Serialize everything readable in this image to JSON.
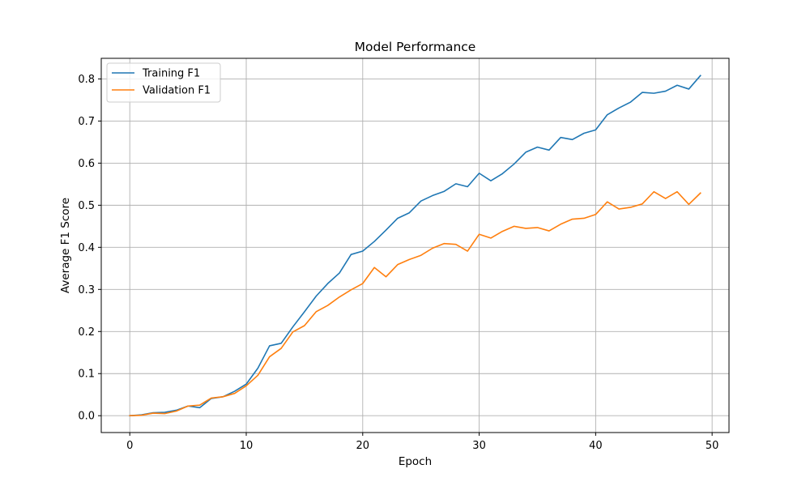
{
  "chart_data": {
    "type": "line",
    "title": "Model Performance",
    "xlabel": "Epoch",
    "ylabel": "Average F1 Score",
    "xlim": [
      -2.45,
      51.45
    ],
    "ylim": [
      -0.04,
      0.849
    ],
    "xticks": [
      0,
      10,
      20,
      30,
      40,
      50
    ],
    "yticks": [
      0.0,
      0.1,
      0.2,
      0.3,
      0.4,
      0.5,
      0.6,
      0.7,
      0.8
    ],
    "xtick_labels": [
      "0",
      "10",
      "20",
      "30",
      "40",
      "50"
    ],
    "ytick_labels": [
      "0.0",
      "0.1",
      "0.2",
      "0.3",
      "0.4",
      "0.5",
      "0.6",
      "0.7",
      "0.8"
    ],
    "grid": true,
    "legend_position": "upper left",
    "x": [
      0,
      1,
      2,
      3,
      4,
      5,
      6,
      7,
      8,
      9,
      10,
      11,
      12,
      13,
      14,
      15,
      16,
      17,
      18,
      19,
      20,
      21,
      22,
      23,
      24,
      25,
      26,
      27,
      28,
      29,
      30,
      31,
      32,
      33,
      34,
      35,
      36,
      37,
      38,
      39,
      40,
      41,
      42,
      43,
      44,
      45,
      46,
      47,
      48,
      49
    ],
    "series": [
      {
        "name": "Training F1",
        "color": "#1f77b4",
        "values": [
          0.0,
          0.002,
          0.007,
          0.008,
          0.013,
          0.023,
          0.019,
          0.041,
          0.045,
          0.058,
          0.075,
          0.113,
          0.166,
          0.172,
          0.211,
          0.247,
          0.284,
          0.314,
          0.339,
          0.383,
          0.391,
          0.414,
          0.441,
          0.469,
          0.482,
          0.51,
          0.523,
          0.533,
          0.551,
          0.544,
          0.576,
          0.558,
          0.575,
          0.598,
          0.626,
          0.638,
          0.631,
          0.661,
          0.656,
          0.671,
          0.679,
          0.715,
          0.731,
          0.745,
          0.768,
          0.766,
          0.771,
          0.785,
          0.776,
          0.808
        ]
      },
      {
        "name": "Validation F1",
        "color": "#ff7f0e",
        "values": [
          0.0,
          0.001,
          0.006,
          0.005,
          0.011,
          0.023,
          0.025,
          0.042,
          0.045,
          0.053,
          0.071,
          0.096,
          0.14,
          0.16,
          0.199,
          0.214,
          0.247,
          0.262,
          0.282,
          0.299,
          0.314,
          0.352,
          0.33,
          0.359,
          0.371,
          0.381,
          0.398,
          0.409,
          0.407,
          0.391,
          0.431,
          0.422,
          0.438,
          0.45,
          0.445,
          0.447,
          0.439,
          0.455,
          0.467,
          0.469,
          0.478,
          0.508,
          0.491,
          0.495,
          0.503,
          0.532,
          0.516,
          0.532,
          0.502,
          0.529
        ]
      }
    ]
  }
}
